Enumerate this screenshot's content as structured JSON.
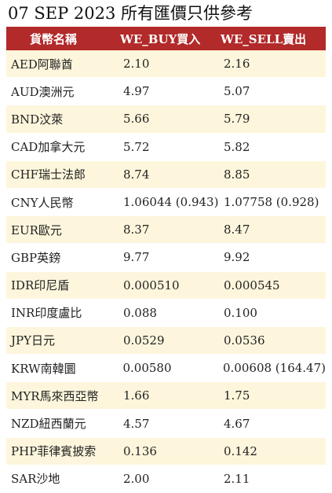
{
  "page": {
    "title": "07 SEP 2023 所有匯價只供參考"
  },
  "table": {
    "headers": [
      "貨幣名稱",
      "WE_BUY買入",
      "WE_SELL賣出"
    ],
    "rows": [
      {
        "currency": "AED阿聯酋",
        "buy": "2.10",
        "sell": "2.16"
      },
      {
        "currency": "AUD澳洲元",
        "buy": "4.97",
        "sell": "5.07"
      },
      {
        "currency": "BND汶萊",
        "buy": "5.66",
        "sell": "5.79"
      },
      {
        "currency": "CAD加拿大元",
        "buy": "5.72",
        "sell": "5.82"
      },
      {
        "currency": "CHF瑞士法郎",
        "buy": "8.74",
        "sell": "8.85"
      },
      {
        "currency": "CNY人民幣",
        "buy": "1.06044 (0.943)",
        "sell": "1.07758 (0.928)"
      },
      {
        "currency": "EUR歐元",
        "buy": "8.37",
        "sell": "8.47"
      },
      {
        "currency": "GBP英鎊",
        "buy": "9.77",
        "sell": "9.92"
      },
      {
        "currency": "IDR印尼盾",
        "buy": "0.000510",
        "sell": "0.000545"
      },
      {
        "currency": "INR印度盧比",
        "buy": "0.088",
        "sell": "0.100"
      },
      {
        "currency": "JPY日元",
        "buy": "0.0529",
        "sell": "0.0536"
      },
      {
        "currency": "KRW南韓圜",
        "buy": "0.00580",
        "sell": "0.00608 (164.47)"
      },
      {
        "currency": "MYR馬來西亞幣",
        "buy": "1.66",
        "sell": "1.75"
      },
      {
        "currency": "NZD紐西蘭元",
        "buy": "4.57",
        "sell": "4.67"
      },
      {
        "currency": "PHP菲律賓披索",
        "buy": "0.136",
        "sell": "0.142"
      },
      {
        "currency": "SAR沙地",
        "buy": "2.00",
        "sell": "2.11"
      }
    ]
  },
  "colors": {
    "header_bg": "#b22a2a",
    "stripe_bg": "#fdf6dc"
  }
}
